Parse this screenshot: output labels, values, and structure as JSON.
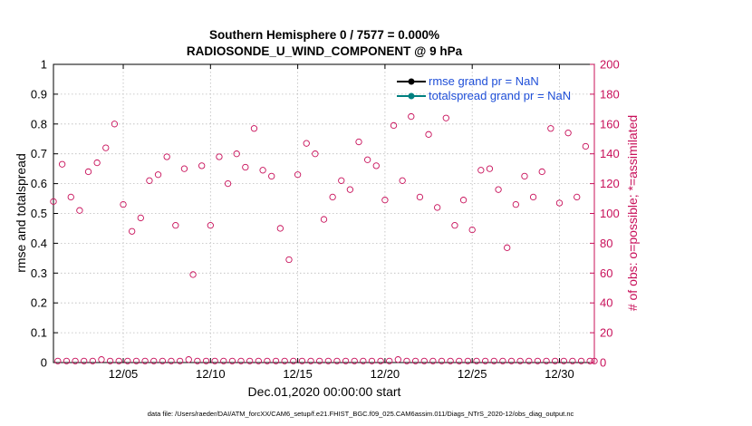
{
  "chart_data": {
    "type": "scatter",
    "title": "Southern Hemisphere 0 / 7577 = 0.000%",
    "subtitle": "RADIOSONDE_U_WIND_COMPONENT @ 9 hPa",
    "xlabel": "Dec.01,2020 00:00:00 start",
    "ylabel_left": "rmse and totalspread",
    "ylabel_right": "# of obs: o=possible; *=assimilated",
    "xlim": [
      1,
      32
    ],
    "ylim_left": [
      0,
      1
    ],
    "ylim_right": [
      0,
      200
    ],
    "x_ticks": [
      5,
      10,
      15,
      20,
      25,
      30
    ],
    "x_tick_labels": [
      "12/05",
      "12/10",
      "12/15",
      "12/20",
      "12/25",
      "12/30"
    ],
    "y_ticks_left": [
      0,
      0.1,
      0.2,
      0.3,
      0.4,
      0.5,
      0.6,
      0.7,
      0.8,
      0.9,
      1
    ],
    "y_tick_labels_left": [
      "0",
      "0.1",
      "0.2",
      "0.3",
      "0.4",
      "0.5",
      "0.6",
      "0.7",
      "0.8",
      "0.9",
      "1"
    ],
    "y_ticks_right": [
      0,
      20,
      40,
      60,
      80,
      100,
      120,
      140,
      160,
      180,
      200
    ],
    "y_tick_labels_right": [
      "0",
      "20",
      "40",
      "60",
      "80",
      "100",
      "120",
      "140",
      "160",
      "180",
      "200"
    ],
    "grid": true,
    "legend_placement": "top-right",
    "legend": [
      {
        "label": "rmse grand pr = NaN",
        "color": "#000000"
      },
      {
        "label": "totalspread grand pr = NaN",
        "color": "#008080"
      }
    ],
    "series": [
      {
        "axis": "right",
        "marker": "open-circle",
        "color": "#c8105a",
        "x": [
          1.0,
          1.25,
          1.5,
          1.75,
          2.0,
          2.25,
          2.5,
          2.75,
          3.0,
          3.25,
          3.5,
          3.75,
          4.0,
          4.25,
          4.5,
          4.75,
          5.0,
          5.25,
          5.5,
          5.75,
          6.0,
          6.25,
          6.5,
          6.75,
          7.0,
          7.25,
          7.5,
          7.75,
          8.0,
          8.25,
          8.5,
          8.75,
          9.0,
          9.25,
          9.5,
          9.75,
          10.0,
          10.25,
          10.5,
          10.75,
          11.0,
          11.25,
          11.5,
          11.75,
          12.0,
          12.25,
          12.5,
          12.75,
          13.0,
          13.25,
          13.5,
          13.75,
          14.0,
          14.25,
          14.5,
          14.75,
          15.0,
          15.25,
          15.5,
          15.75,
          16.0,
          16.25,
          16.5,
          16.75,
          17.0,
          17.25,
          17.5,
          17.75,
          18.0,
          18.25,
          18.5,
          18.75,
          19.0,
          19.25,
          19.5,
          19.75,
          20.0,
          20.25,
          20.5,
          20.75,
          21.0,
          21.25,
          21.5,
          21.75,
          22.0,
          22.25,
          22.5,
          22.75,
          23.0,
          23.25,
          23.5,
          23.75,
          24.0,
          24.25,
          24.5,
          24.75,
          25.0,
          25.25,
          25.5,
          25.75,
          26.0,
          26.25,
          26.5,
          26.75,
          27.0,
          27.25,
          27.5,
          27.75,
          28.0,
          28.25,
          28.5,
          28.75,
          29.0,
          29.25,
          29.5,
          29.75,
          30.0,
          30.25,
          30.5,
          30.75,
          31.0,
          31.25,
          31.5,
          31.75,
          32.0
        ],
        "y": [
          108,
          1,
          133,
          1,
          111,
          1,
          102,
          1,
          128,
          1,
          134,
          2,
          144,
          1,
          160,
          1,
          106,
          1,
          88,
          1,
          97,
          1,
          122,
          1,
          126,
          1,
          138,
          1,
          92,
          1,
          130,
          2,
          59,
          1,
          132,
          1,
          92,
          1,
          138,
          1,
          120,
          1,
          140,
          1,
          131,
          1,
          157,
          1,
          129,
          1,
          125,
          1,
          90,
          1,
          69,
          1,
          126,
          1,
          147,
          1,
          140,
          1,
          96,
          1,
          111,
          1,
          122,
          1,
          116,
          1,
          148,
          1,
          136,
          1,
          132,
          1,
          109,
          1,
          159,
          2,
          122,
          1,
          165,
          1,
          111,
          1,
          153,
          1,
          104,
          1,
          164,
          1,
          92,
          1,
          109,
          1,
          89,
          1,
          129,
          1,
          130,
          1,
          116,
          1,
          77,
          1,
          106,
          1,
          125,
          1,
          111,
          1,
          128,
          1,
          157,
          1,
          107,
          1,
          154,
          1,
          111,
          1,
          145,
          1,
          1
        ]
      }
    ],
    "footer": "data file: /Users/raeder/DAI/ATM_forcXX/CAM6_setup/f.e21.FHIST_BGC.f09_025.CAM6assim.011/Diags_NTrS_2020-12/obs_diag_output.nc"
  }
}
